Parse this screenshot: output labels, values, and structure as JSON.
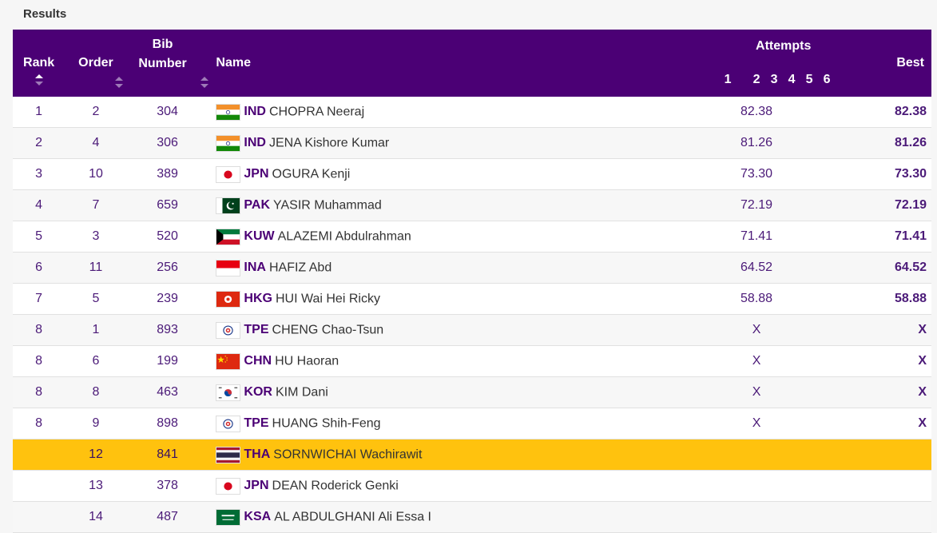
{
  "page": {
    "section_title": "Results"
  },
  "table": {
    "headers": {
      "rank": "Rank",
      "order": "Order",
      "bib_line1": "Bib",
      "bib_line2": "Number",
      "name": "Name",
      "attempts": "Attempts",
      "attempt_nums": [
        "1",
        "2",
        "3",
        "4",
        "5",
        "6"
      ],
      "best": "Best"
    },
    "rows": [
      {
        "rank": "1",
        "order": "2",
        "bib": "304",
        "code": "IND",
        "name": "CHOPRA Neeraj",
        "a1": "82.38",
        "best": "82.38",
        "flag": "india-flag-icon"
      },
      {
        "rank": "2",
        "order": "4",
        "bib": "306",
        "code": "IND",
        "name": "JENA Kishore Kumar",
        "a1": "81.26",
        "best": "81.26",
        "flag": "india-flag-icon"
      },
      {
        "rank": "3",
        "order": "10",
        "bib": "389",
        "code": "JPN",
        "name": "OGURA Kenji",
        "a1": "73.30",
        "best": "73.30",
        "flag": "japan-flag-icon"
      },
      {
        "rank": "4",
        "order": "7",
        "bib": "659",
        "code": "PAK",
        "name": "YASIR Muhammad",
        "a1": "72.19",
        "best": "72.19",
        "flag": "pakistan-flag-icon"
      },
      {
        "rank": "5",
        "order": "3",
        "bib": "520",
        "code": "KUW",
        "name": "ALAZEMI Abdulrahman",
        "a1": "71.41",
        "best": "71.41",
        "flag": "kuwait-flag-icon"
      },
      {
        "rank": "6",
        "order": "11",
        "bib": "256",
        "code": "INA",
        "name": "HAFIZ Abd",
        "a1": "64.52",
        "best": "64.52",
        "flag": "indonesia-flag-icon"
      },
      {
        "rank": "7",
        "order": "5",
        "bib": "239",
        "code": "HKG",
        "name": "HUI Wai Hei Ricky",
        "a1": "58.88",
        "best": "58.88",
        "flag": "hong-kong-flag-icon"
      },
      {
        "rank": "8",
        "order": "1",
        "bib": "893",
        "code": "TPE",
        "name": "CHENG Chao-Tsun",
        "a1": "X",
        "best": "X",
        "flag": "chinese-taipei-flag-icon"
      },
      {
        "rank": "8",
        "order": "6",
        "bib": "199",
        "code": "CHN",
        "name": "HU Haoran",
        "a1": "X",
        "best": "X",
        "flag": "china-flag-icon"
      },
      {
        "rank": "8",
        "order": "8",
        "bib": "463",
        "code": "KOR",
        "name": "KIM Dani",
        "a1": "X",
        "best": "X",
        "flag": "korea-flag-icon"
      },
      {
        "rank": "8",
        "order": "9",
        "bib": "898",
        "code": "TPE",
        "name": "HUANG Shih-Feng",
        "a1": "X",
        "best": "X",
        "flag": "chinese-taipei-flag-icon"
      },
      {
        "rank": "",
        "order": "12",
        "bib": "841",
        "code": "THA",
        "name": "SORNWICHAI Wachirawit",
        "a1": "",
        "best": "",
        "flag": "thailand-flag-icon",
        "highlight": true
      },
      {
        "rank": "",
        "order": "13",
        "bib": "378",
        "code": "JPN",
        "name": "DEAN Roderick Genki",
        "a1": "",
        "best": "",
        "flag": "japan-flag-icon"
      },
      {
        "rank": "",
        "order": "14",
        "bib": "487",
        "code": "KSA",
        "name": "AL ABDULGHANI Ali Essa I",
        "a1": "",
        "best": "",
        "flag": "saudi-arabia-flag-icon"
      }
    ]
  },
  "colors": {
    "header_bg": "#4b0075",
    "highlight_row": "#ffc20e",
    "text_purple": "#4b1a78"
  }
}
